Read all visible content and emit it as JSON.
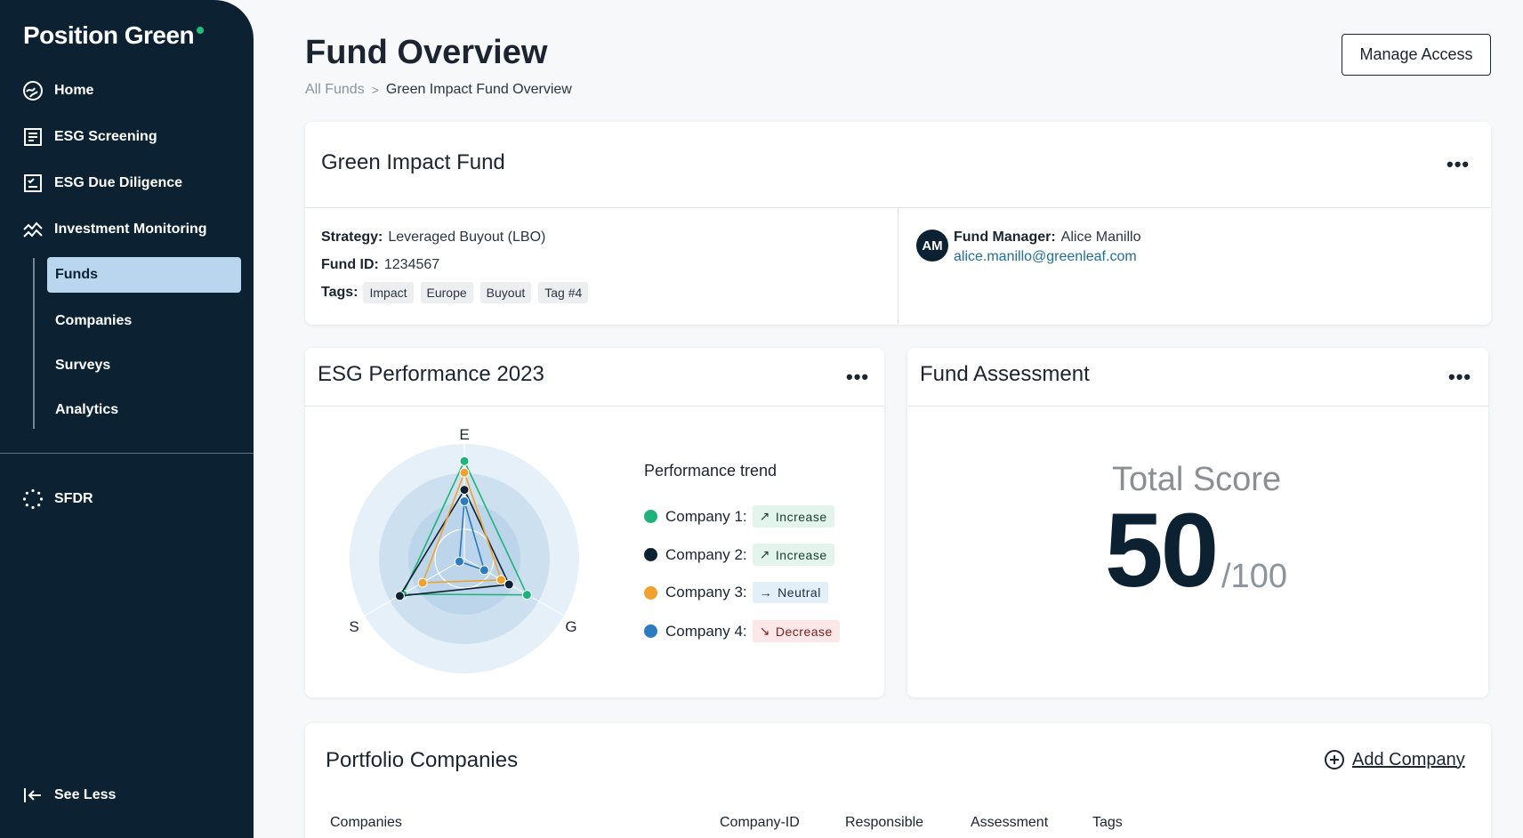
{
  "brand": {
    "name": "Position Green",
    "accent": "#1fbf7a"
  },
  "sidebar": {
    "bg": "#0c2233",
    "items": [
      {
        "label": "Home",
        "icon": "home-icon"
      },
      {
        "label": "ESG Screening",
        "icon": "screening-icon"
      },
      {
        "label": "ESG Due Diligence",
        "icon": "checklist-icon"
      },
      {
        "label": "Investment Monitoring",
        "icon": "monitoring-icon"
      }
    ],
    "subitems": [
      {
        "label": "Funds",
        "active": true
      },
      {
        "label": "Companies"
      },
      {
        "label": "Surveys"
      },
      {
        "label": "Analytics"
      }
    ],
    "sfdr": {
      "label": "SFDR",
      "icon": "stars-icon"
    },
    "see_less": {
      "label": "See Less",
      "icon": "collapse-icon"
    }
  },
  "header": {
    "title": "Fund Overview",
    "breadcrumb": {
      "root": "All Funds",
      "separator": ">",
      "current": "Green Impact Fund Overview"
    },
    "manage_access": "Manage Access"
  },
  "fund_card": {
    "title": "Green Impact Fund",
    "strategy_label": "Strategy:",
    "strategy": "Leveraged Buyout (LBO)",
    "fund_id_label": "Fund ID:",
    "fund_id": "1234567",
    "tags_label": "Tags:",
    "tags": [
      "Impact",
      "Europe",
      "Buyout",
      "Tag #4"
    ],
    "manager_initials": "AM",
    "manager_label": "Fund Manager:",
    "manager_name": "Alice Manillo",
    "manager_email": "alice.manillo@greenleaf.com"
  },
  "esg_card": {
    "title": "ESG Performance 2023",
    "axes": [
      "E",
      "S",
      "G"
    ],
    "legend_title": "Performance trend",
    "companies": [
      {
        "label": "Company 1:",
        "color": "#1fb27a",
        "trend": "Increase",
        "trend_type": "up",
        "scores": [
          0.85,
          0.62,
          0.63
        ]
      },
      {
        "label": "Company 2:",
        "color": "#0c2233",
        "trend": "Increase",
        "trend_type": "up",
        "scores": [
          0.6,
          0.65,
          0.45
        ]
      },
      {
        "label": "Company 3:",
        "color": "#f0a22e",
        "trend": "Neutral",
        "trend_type": "flat",
        "scores": [
          0.75,
          0.42,
          0.37
        ]
      },
      {
        "label": "Company 4:",
        "color": "#2a7bbf",
        "trend": "Decrease",
        "trend_type": "down",
        "scores": [
          0.5,
          0.05,
          0.2
        ]
      }
    ]
  },
  "assessment_card": {
    "title": "Fund Assessment",
    "score_label": "Total Score",
    "score": "50",
    "score_max": "/100"
  },
  "portfolio": {
    "title": "Portfolio Companies",
    "add_label": "Add Company",
    "columns": [
      "Companies",
      "Company-ID",
      "Responsible",
      "Assessment",
      "Tags"
    ]
  }
}
